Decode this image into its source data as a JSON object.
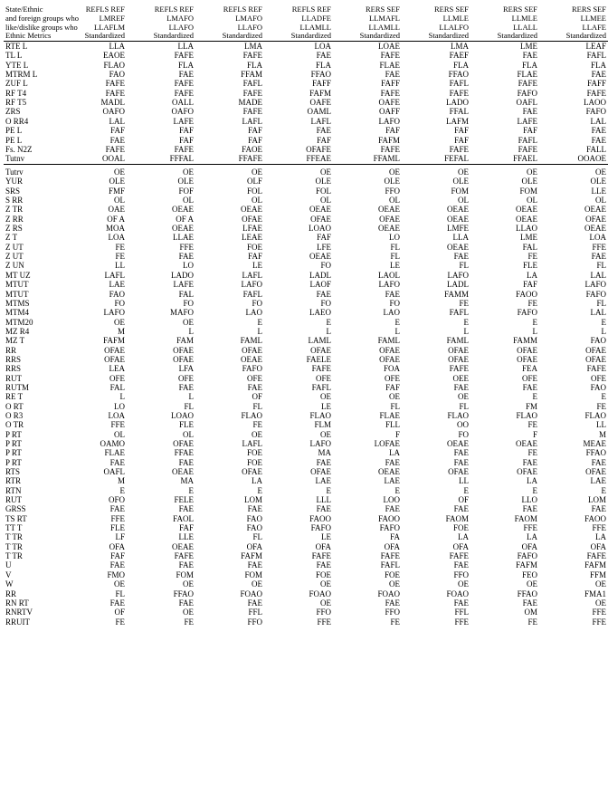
{
  "header": {
    "line1_label": "State/Ethnic",
    "line2_label": "and foreign groups who",
    "line3_label": "like/dislike groups who",
    "line4_label": "Ethnic Metrics",
    "cols": [
      {
        "l1": "REFLS REF",
        "l2": "LMREF",
        "l3": "LLAFLM",
        "l4": "Standardized"
      },
      {
        "l1": "REFLS REF",
        "l2": "LMAFO",
        "l3": "LLAFO",
        "l4": "Standardized"
      },
      {
        "l1": "REFLS REF",
        "l2": "LMAFO",
        "l3": "LLAFO",
        "l4": "Standardized"
      },
      {
        "l1": "REFLS REF",
        "l2": "LLADFE",
        "l3": "LLAMLL",
        "l4": "Standardized"
      },
      {
        "l1": "RERS SEF",
        "l2": "LLMAFL",
        "l3": "LLAMLL",
        "l4": "Standardized"
      },
      {
        "l1": "RERS SEF",
        "l2": "LLMLE",
        "l3": "LLALFO",
        "l4": "Standardized"
      },
      {
        "l1": "RERS SEF",
        "l2": "LLMLE",
        "l3": "LLALL",
        "l4": "Standardized"
      },
      {
        "l1": "RERS SEF",
        "l2": "LLMEE",
        "l3": "LLAFE",
        "l4": "Standardized"
      }
    ]
  },
  "section1": {
    "rows": [
      {
        "label": "RTE L",
        "v": [
          "LLA",
          "LLA",
          "LMA",
          "LOA",
          "LOAE",
          "LMA",
          "LME",
          "LEAF"
        ]
      },
      {
        "label": "TL L",
        "v": [
          "EAOE",
          "FAFE",
          "FAFE",
          "FAE",
          "FAFE",
          "FAEF",
          "FAE",
          "FAFL"
        ]
      },
      {
        "label": "YTE L",
        "v": [
          "FLAO",
          "FLA",
          "FLA",
          "FLA",
          "FLAE",
          "FLA",
          "FLA",
          "FLA"
        ]
      },
      {
        "label": "MTRM L",
        "v": [
          "FAO",
          "FAE",
          "FFAM",
          "FFAO",
          "FAE",
          "FFAO",
          "FLAE",
          "FAE"
        ]
      },
      {
        "label": "ZUF L",
        "v": [
          "FAFE",
          "FAFE",
          "FAFL",
          "FAFF",
          "FAFF",
          "FAFL",
          "FAFE",
          "FAFF"
        ]
      },
      {
        "label": "RF T4",
        "v": [
          "FAFE",
          "FAFE",
          "FAFE",
          "FAFM",
          "FAFE",
          "FAFE",
          "FAFO",
          "FAFE"
        ]
      },
      {
        "label": "RF T5",
        "v": [
          "MADL",
          "OALL",
          "MADE",
          "OAFE",
          "OAFE",
          "LADO",
          "OAFL",
          "LAOO"
        ]
      },
      {
        "label": "ZRS",
        "v": [
          "OAFO",
          "OAFO",
          "FAFE",
          "OAML",
          "OAFF",
          "FFAL",
          "FAE",
          "FAFO"
        ]
      },
      {
        "label": "O RR4",
        "v": [
          "LAL",
          "LAFE",
          "LAFL",
          "LAFL",
          "LAFO",
          "LAFM",
          "LAFE",
          "LAL"
        ]
      },
      {
        "label": "PE L",
        "v": [
          "FAF",
          "FAF",
          "FAF",
          "FAE",
          "FAF",
          "FAF",
          "FAF",
          "FAE"
        ]
      },
      {
        "label": "PE L",
        "v": [
          "FAE",
          "FAF",
          "FAF",
          "FAF",
          "FAFM",
          "FAF",
          "FAFL",
          "FAE"
        ]
      },
      {
        "label": "Fs. N2Z",
        "v": [
          "FAFE",
          "FAFE",
          "FAOE",
          "OFAFE",
          "FAFE",
          "FAFE",
          "FAFE",
          "FALL"
        ]
      }
    ],
    "total": {
      "label": "Tutnv",
      "v": [
        "OOAL",
        "FFFAL",
        "FFAFE",
        "FFEAE",
        "FFAML",
        "FEFAL",
        "FFAEL",
        "OOAOE"
      ]
    }
  },
  "section2": {
    "rows": [
      {
        "label": "Tutrv",
        "v": [
          "OE",
          "OE",
          "OE",
          "OE",
          "OE",
          "OE",
          "OE",
          "OE"
        ]
      },
      {
        "label": "YUR",
        "v": [
          "OLE",
          "OLE",
          "OLF",
          "OLE",
          "OLE",
          "OLE",
          "OLE",
          "OLE"
        ]
      },
      {
        "label": "SRS",
        "v": [
          "FMF",
          "FOF",
          "FOL",
          "FOL",
          "FFO",
          "FOM",
          "FOM",
          "LLE"
        ]
      },
      {
        "label": "S RR",
        "v": [
          "OL",
          "OL",
          "OL",
          "OL",
          "OL",
          "OL",
          "OL",
          "OL"
        ]
      },
      {
        "label": "Z TR",
        "v": [
          "OAE",
          "OEAE",
          "OEAE",
          "OEAE",
          "OEAE",
          "OEAE",
          "OEAE",
          "OEAE"
        ]
      },
      {
        "label": "Z RR",
        "v": [
          "OF A",
          "OF A",
          "OFAE",
          "OFAE",
          "OFAE",
          "OEAE",
          "OEAE",
          "OFAE"
        ]
      },
      {
        "label": "Z RS",
        "v": [
          "MOA",
          "OEAE",
          "LFAE",
          "LOAO",
          "OEAE",
          "LMFE",
          "LLAO",
          "OEAE"
        ]
      },
      {
        "label": "Z T",
        "v": [
          "LOA",
          "LLAE",
          "LEAE",
          "FAF",
          "LO",
          "LLA",
          "LME",
          "LOA"
        ]
      },
      {
        "label": "Z UT",
        "v": [
          "FE",
          "FFE",
          "FOE",
          "LFE",
          "FL",
          "OEAE",
          "FAL",
          "FFE"
        ]
      },
      {
        "label": "Z UT",
        "v": [
          "FE",
          "FAE",
          "FAF",
          "OEAE",
          "FL",
          "FAE",
          "FE",
          "FAE"
        ]
      },
      {
        "label": "Z UN",
        "v": [
          "LL",
          "LO",
          "LE",
          "FO",
          "LE",
          "FL",
          "FLE",
          "FL"
        ]
      },
      {
        "label": "MT UZ",
        "v": [
          "LAFL",
          "LADO",
          "LAFL",
          "LADL",
          "LAOL",
          "LAFO",
          "LA",
          "LAL"
        ]
      },
      {
        "label": "MTUT",
        "v": [
          "LAE",
          "LAFE",
          "LAFO",
          "LAOF",
          "LAFO",
          "LADL",
          "FAF",
          "LAFO"
        ]
      },
      {
        "label": "MTUT",
        "v": [
          "FAO",
          "FAL",
          "FAFL",
          "FAE",
          "FAE",
          "FAMM",
          "FAOO",
          "FAFO"
        ]
      },
      {
        "label": "MTMS",
        "v": [
          "FO",
          "FO",
          "FO",
          "FO",
          "FO",
          "FE",
          "FE",
          "FL"
        ]
      },
      {
        "label": "MTM4",
        "v": [
          "LAFO",
          "MAFO",
          "LAO",
          "LAEO",
          "LAO",
          "FAFL",
          "FAFO",
          "LAL"
        ]
      },
      {
        "label": "MTM20",
        "v": [
          "OE",
          "OE",
          "E",
          "E",
          "E",
          "E",
          "E",
          "E"
        ]
      },
      {
        "label": "MZ R4",
        "v": [
          "M",
          "L",
          "L",
          "L",
          "L",
          "L",
          "L",
          "L"
        ]
      },
      {
        "label": "MZ T",
        "v": [
          "FAFM",
          "FAM",
          "FAML",
          "LAML",
          "FAML",
          "FAML",
          "FAMM",
          "FAO"
        ]
      },
      {
        "label": "RR",
        "v": [
          "OFAE",
          "OFAE",
          "OFAE",
          "OFAE",
          "OFAE",
          "OFAE",
          "OFAE",
          "OFAE"
        ]
      },
      {
        "label": "RRS",
        "v": [
          "OFAE",
          "OFAE",
          "OEAE",
          "FAELE",
          "OFAE",
          "OFAE",
          "OFAE",
          "OFAE"
        ]
      },
      {
        "label": "RRS",
        "v": [
          "LEA",
          "LFA",
          "FAFO",
          "FAFE",
          "FOA",
          "FAFE",
          "FEA",
          "FAFE"
        ]
      },
      {
        "label": "RUT",
        "v": [
          "OFE",
          "OFE",
          "OFE",
          "OFE",
          "OFE",
          "OEE",
          "OFE",
          "OFE"
        ]
      },
      {
        "label": "RUTM",
        "v": [
          "FAL",
          "FAE",
          "FAE",
          "FAFL",
          "FAF",
          "FAE",
          "FAE",
          "FAO"
        ]
      },
      {
        "label": "RE T",
        "v": [
          "L",
          "L",
          "OF",
          "OE",
          "OE",
          "OE",
          "E",
          "E"
        ]
      },
      {
        "label": "O RT",
        "v": [
          "LO",
          "FL",
          "FL",
          "LE",
          "FL",
          "FL",
          "FM",
          "FE"
        ]
      },
      {
        "label": "O R3",
        "v": [
          "LOA",
          "LOAO",
          "FLAO",
          "FLAO",
          "FLAE",
          "FLAO",
          "FLAO",
          "FLAO"
        ]
      },
      {
        "label": "O TR",
        "v": [
          "FFE",
          "FLE",
          "FE",
          "FLM",
          "FLL",
          "OO",
          "FE",
          "LL"
        ]
      },
      {
        "label": "P RT",
        "v": [
          "OL",
          "OL",
          "OE",
          "OE",
          "F",
          "FO",
          "F",
          "M"
        ]
      },
      {
        "label": "P RT",
        "v": [
          "OAMO",
          "OFAE",
          "LAFL",
          "LAFO",
          "LOFAE",
          "OEAE",
          "OEAE",
          "MEAE"
        ]
      },
      {
        "label": "P RT",
        "v": [
          "FLAE",
          "FFAE",
          "FOE",
          "MA",
          "LA",
          "FAE",
          "FE",
          "FFAO"
        ]
      },
      {
        "label": "P RT",
        "v": [
          "FAE",
          "FAE",
          "FOE",
          "FAE",
          "FAE",
          "FAE",
          "FAE",
          "FAE"
        ]
      },
      {
        "label": "RTS",
        "v": [
          "OAFL",
          "OEAE",
          "OFAE",
          "OFAE",
          "OEAE",
          "OFAE",
          "OFAE",
          "OFAE"
        ]
      },
      {
        "label": "RTR",
        "v": [
          "M",
          "MA",
          "LA",
          "LAE",
          "LAE",
          "LL",
          "LA",
          "LAE"
        ]
      },
      {
        "label": "RTN",
        "v": [
          "E",
          "E",
          "E",
          "E",
          "E",
          "E",
          "E",
          "E"
        ]
      },
      {
        "label": "RUT",
        "v": [
          "OFO",
          "FELE",
          "LOM",
          "LLL",
          "LOO",
          "OF",
          "LLO",
          "LOM"
        ]
      },
      {
        "label": "GRSS",
        "v": [
          "FAE",
          "FAE",
          "FAE",
          "FAE",
          "FAE",
          "FAE",
          "FAE",
          "FAE"
        ]
      },
      {
        "label": "TS RT",
        "v": [
          "FFE",
          "FAOL",
          "FAO",
          "FAOO",
          "FAOO",
          "FAOM",
          "FAOM",
          "FAOO"
        ]
      },
      {
        "label": "TT T",
        "v": [
          "FLE",
          "FAF",
          "FAO",
          "FAFO",
          "FAFO",
          "FOE",
          "FFE",
          "FFE"
        ]
      },
      {
        "label": "T TR",
        "v": [
          "LF",
          "LLE",
          "FL",
          "LE",
          "FA",
          "LA",
          "LA",
          "LA"
        ]
      },
      {
        "label": "T TR",
        "v": [
          "OFA",
          "OEAE",
          "OFA",
          "OFA",
          "OFA",
          "OFA",
          "OFA",
          "OFA"
        ]
      },
      {
        "label": "T TR",
        "v": [
          "FAF",
          "FAFE",
          "FAFM",
          "FAFE",
          "FAFE",
          "FAFE",
          "FAFO",
          "FAFE"
        ]
      },
      {
        "label": "U",
        "v": [
          "FAE",
          "FAE",
          "FAE",
          "FAE",
          "FAFL",
          "FAE",
          "FAFM",
          "FAFM"
        ]
      },
      {
        "label": "V",
        "v": [
          "FMO",
          "FOM",
          "FOM",
          "FOE",
          "FOE",
          "FFO",
          "FEO",
          "FFM"
        ]
      },
      {
        "label": "W",
        "v": [
          "OE",
          "OE",
          "OE",
          "OE",
          "OE",
          "OE",
          "OE",
          "OE"
        ]
      },
      {
        "label": "RR",
        "v": [
          "FL",
          "FFAO",
          "FOAO",
          "FOAO",
          "FOAO",
          "FOAO",
          "FFAO",
          "FMA1"
        ]
      },
      {
        "label": "RN RT",
        "v": [
          "FAE",
          "FAE",
          "FAE",
          "OE",
          "FAE",
          "FAE",
          "FAE",
          "OE"
        ]
      },
      {
        "label": "RNRTV",
        "v": [
          "OF",
          "OE",
          "FFL",
          "FFO",
          "FFO",
          "FFL",
          "OM",
          "FFE"
        ]
      },
      {
        "label": "RRUIT",
        "v": [
          "FE",
          "FE",
          "FFO",
          "FFE",
          "FE",
          "FFE",
          "FE",
          "FFE"
        ]
      }
    ]
  }
}
